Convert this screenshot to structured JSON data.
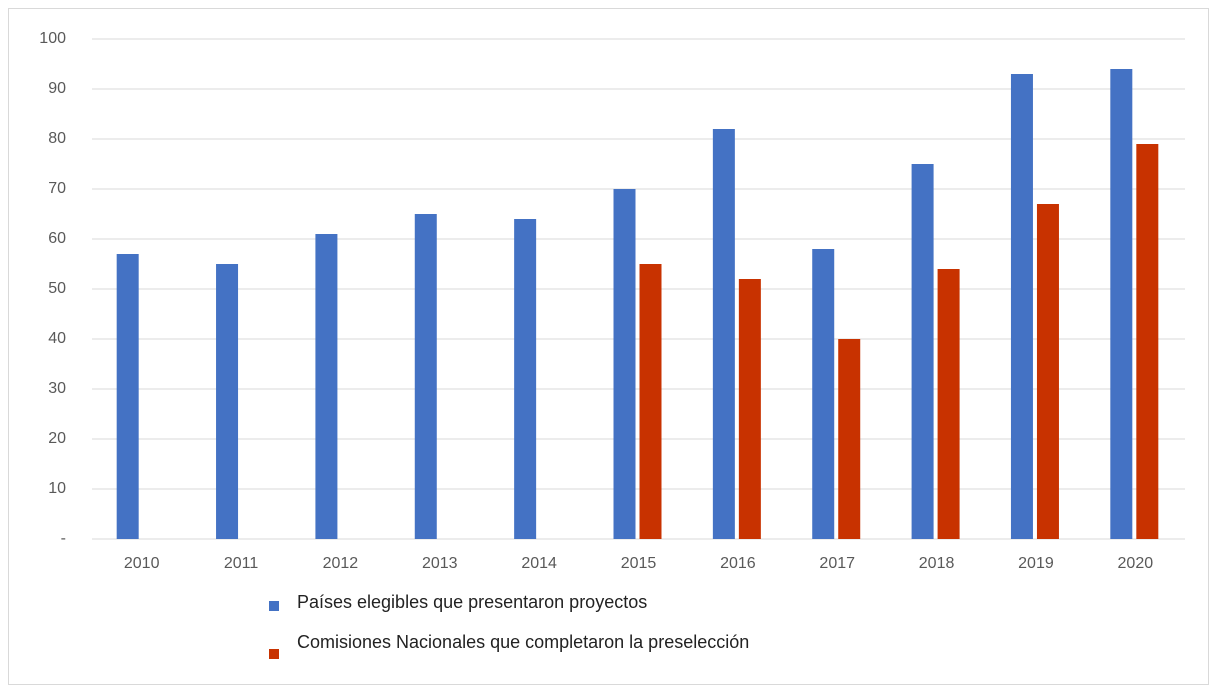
{
  "chart_data": {
    "type": "bar",
    "categories": [
      "2010",
      "2011",
      "2012",
      "2013",
      "2014",
      "2015",
      "2016",
      "2017",
      "2018",
      "2019",
      "2020"
    ],
    "series": [
      {
        "name": "Países elegibles que presentaron proyectos",
        "color": "#4472c4",
        "values": [
          57,
          55,
          61,
          65,
          64,
          70,
          82,
          58,
          75,
          93,
          94
        ]
      },
      {
        "name": "Comisiones Nacionales que completaron la preselección",
        "color": "#c83200",
        "values": [
          null,
          null,
          null,
          null,
          null,
          55,
          52,
          40,
          54,
          67,
          79
        ]
      }
    ],
    "ylim": [
      0,
      100
    ],
    "yticks": [
      {
        "value": 0,
        "label": "-"
      },
      10,
      20,
      30,
      40,
      50,
      60,
      70,
      80,
      90,
      100
    ],
    "grid": true,
    "legend": "bottom"
  }
}
